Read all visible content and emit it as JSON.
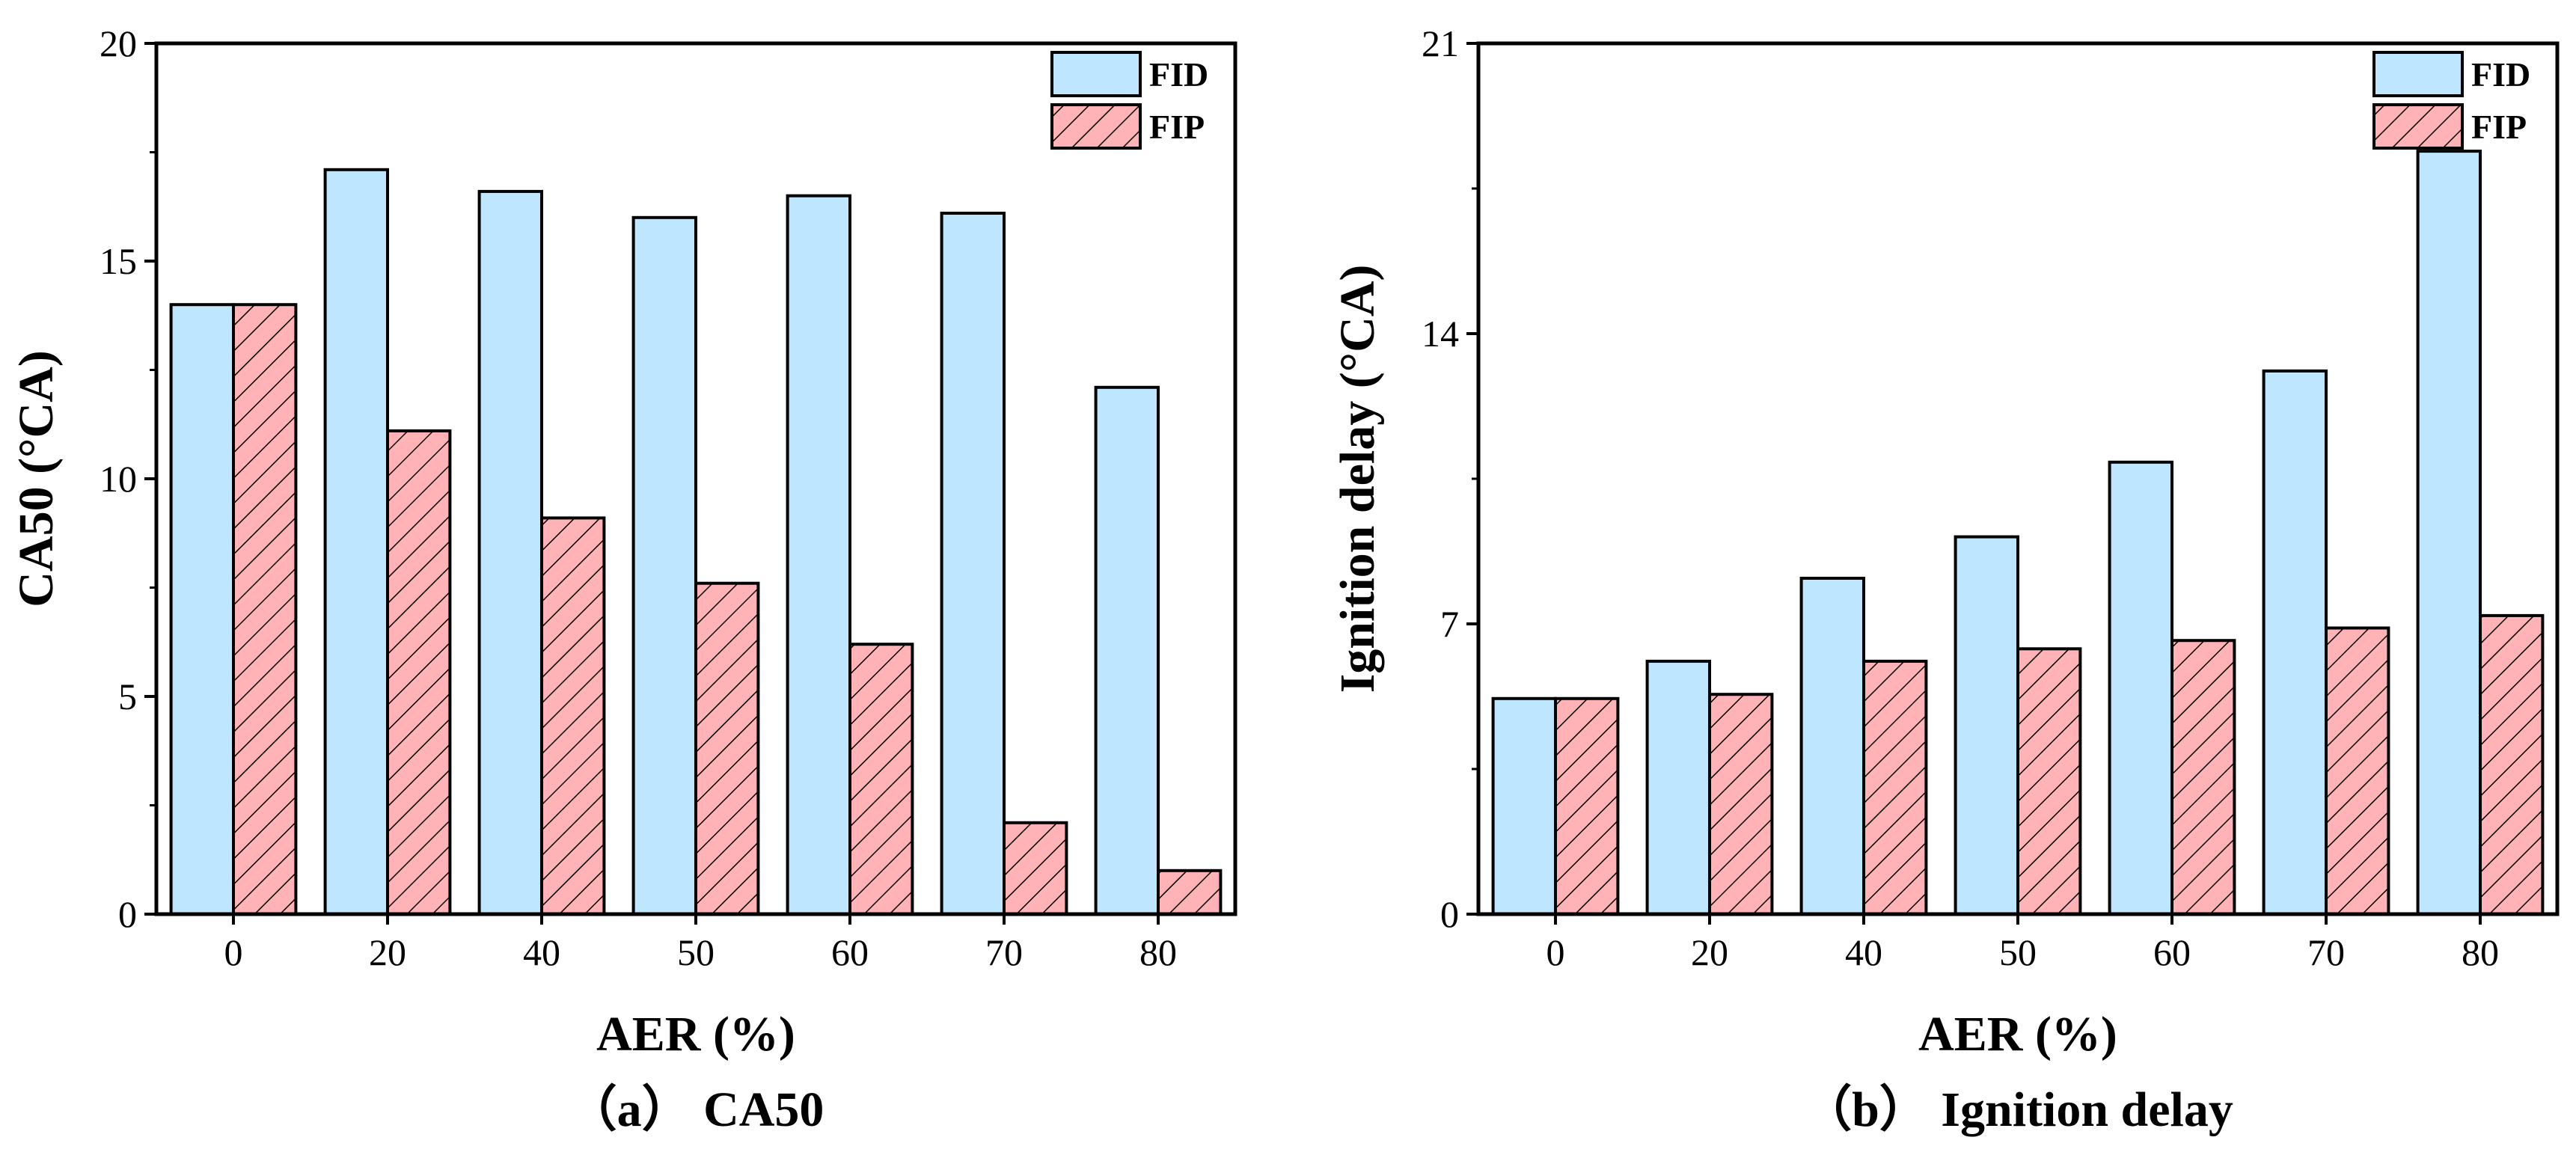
{
  "chart_data": [
    {
      "type": "bar",
      "caption": "（a） CA50",
      "xlabel": "AER (%)",
      "ylabel": "CA50 (°CA)",
      "categories": [
        "0",
        "20",
        "40",
        "50",
        "60",
        "70",
        "80"
      ],
      "ylim": [
        0,
        20
      ],
      "yticks": [
        "0",
        "5",
        "10",
        "15",
        "20"
      ],
      "legend_position": "top-right",
      "series": [
        {
          "name": "FID",
          "pattern": "solid",
          "color": "#bfe6ff",
          "values": [
            14.0,
            17.1,
            16.6,
            16.0,
            16.5,
            16.1,
            12.1
          ]
        },
        {
          "name": "FIP",
          "pattern": "hatched",
          "color": "#ffb3b6",
          "values": [
            14.0,
            11.1,
            9.1,
            7.6,
            6.2,
            2.1,
            1.0
          ]
        }
      ]
    },
    {
      "type": "bar",
      "caption": "（b） Ignition delay",
      "xlabel": "AER (%)",
      "ylabel": "Ignition delay (°CA)",
      "categories": [
        "0",
        "20",
        "40",
        "50",
        "60",
        "70",
        "80"
      ],
      "ylim": [
        0,
        21
      ],
      "yticks": [
        "0",
        "7",
        "14",
        "21"
      ],
      "legend_position": "top-right",
      "series": [
        {
          "name": "FID",
          "pattern": "solid",
          "color": "#bfe6ff",
          "values": [
            5.2,
            6.1,
            8.1,
            9.1,
            10.9,
            13.1,
            18.4
          ]
        },
        {
          "name": "FIP",
          "pattern": "hatched",
          "color": "#ffb3b6",
          "values": [
            5.2,
            5.3,
            6.1,
            6.4,
            6.6,
            6.9,
            7.2
          ]
        }
      ]
    }
  ]
}
